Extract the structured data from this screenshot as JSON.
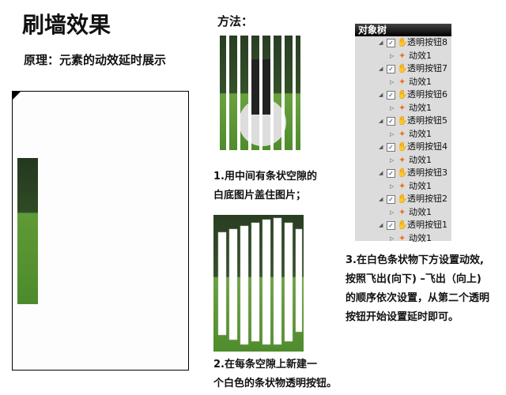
{
  "title": "刷墙效果",
  "principle": "原理：元素的动效延时展示",
  "method": "方法：",
  "steps": {
    "s1": [
      "1.用中间有条状空隙的",
      "白底图片盖住图片；"
    ],
    "s2": [
      "2.在每条空隙上新建一",
      "个白色的条状物透明按钮。"
    ],
    "s3": [
      "3.在白色条状物下方设置动效,",
      "按照飞出(向下) –飞出（向上)",
      "的顺序依次设置，从第二个透明",
      "按钮开始设置延时即可。"
    ]
  },
  "panel": {
    "header": "对象树",
    "items": [
      {
        "button": "透明按钮8",
        "effect": "动效1"
      },
      {
        "button": "透明按钮7",
        "effect": "动效1"
      },
      {
        "button": "透明按钮6",
        "effect": "动效1"
      },
      {
        "button": "透明按钮5",
        "effect": "动效1"
      },
      {
        "button": "透明按钮4",
        "effect": "动效1"
      },
      {
        "button": "透明按钮3",
        "effect": "动效1"
      },
      {
        "button": "透明按钮2",
        "effect": "动效1"
      },
      {
        "button": "透明按钮1",
        "effect": "动效1"
      }
    ]
  },
  "colors": {
    "accent": "#f07020",
    "grass": "#5e9a35"
  }
}
